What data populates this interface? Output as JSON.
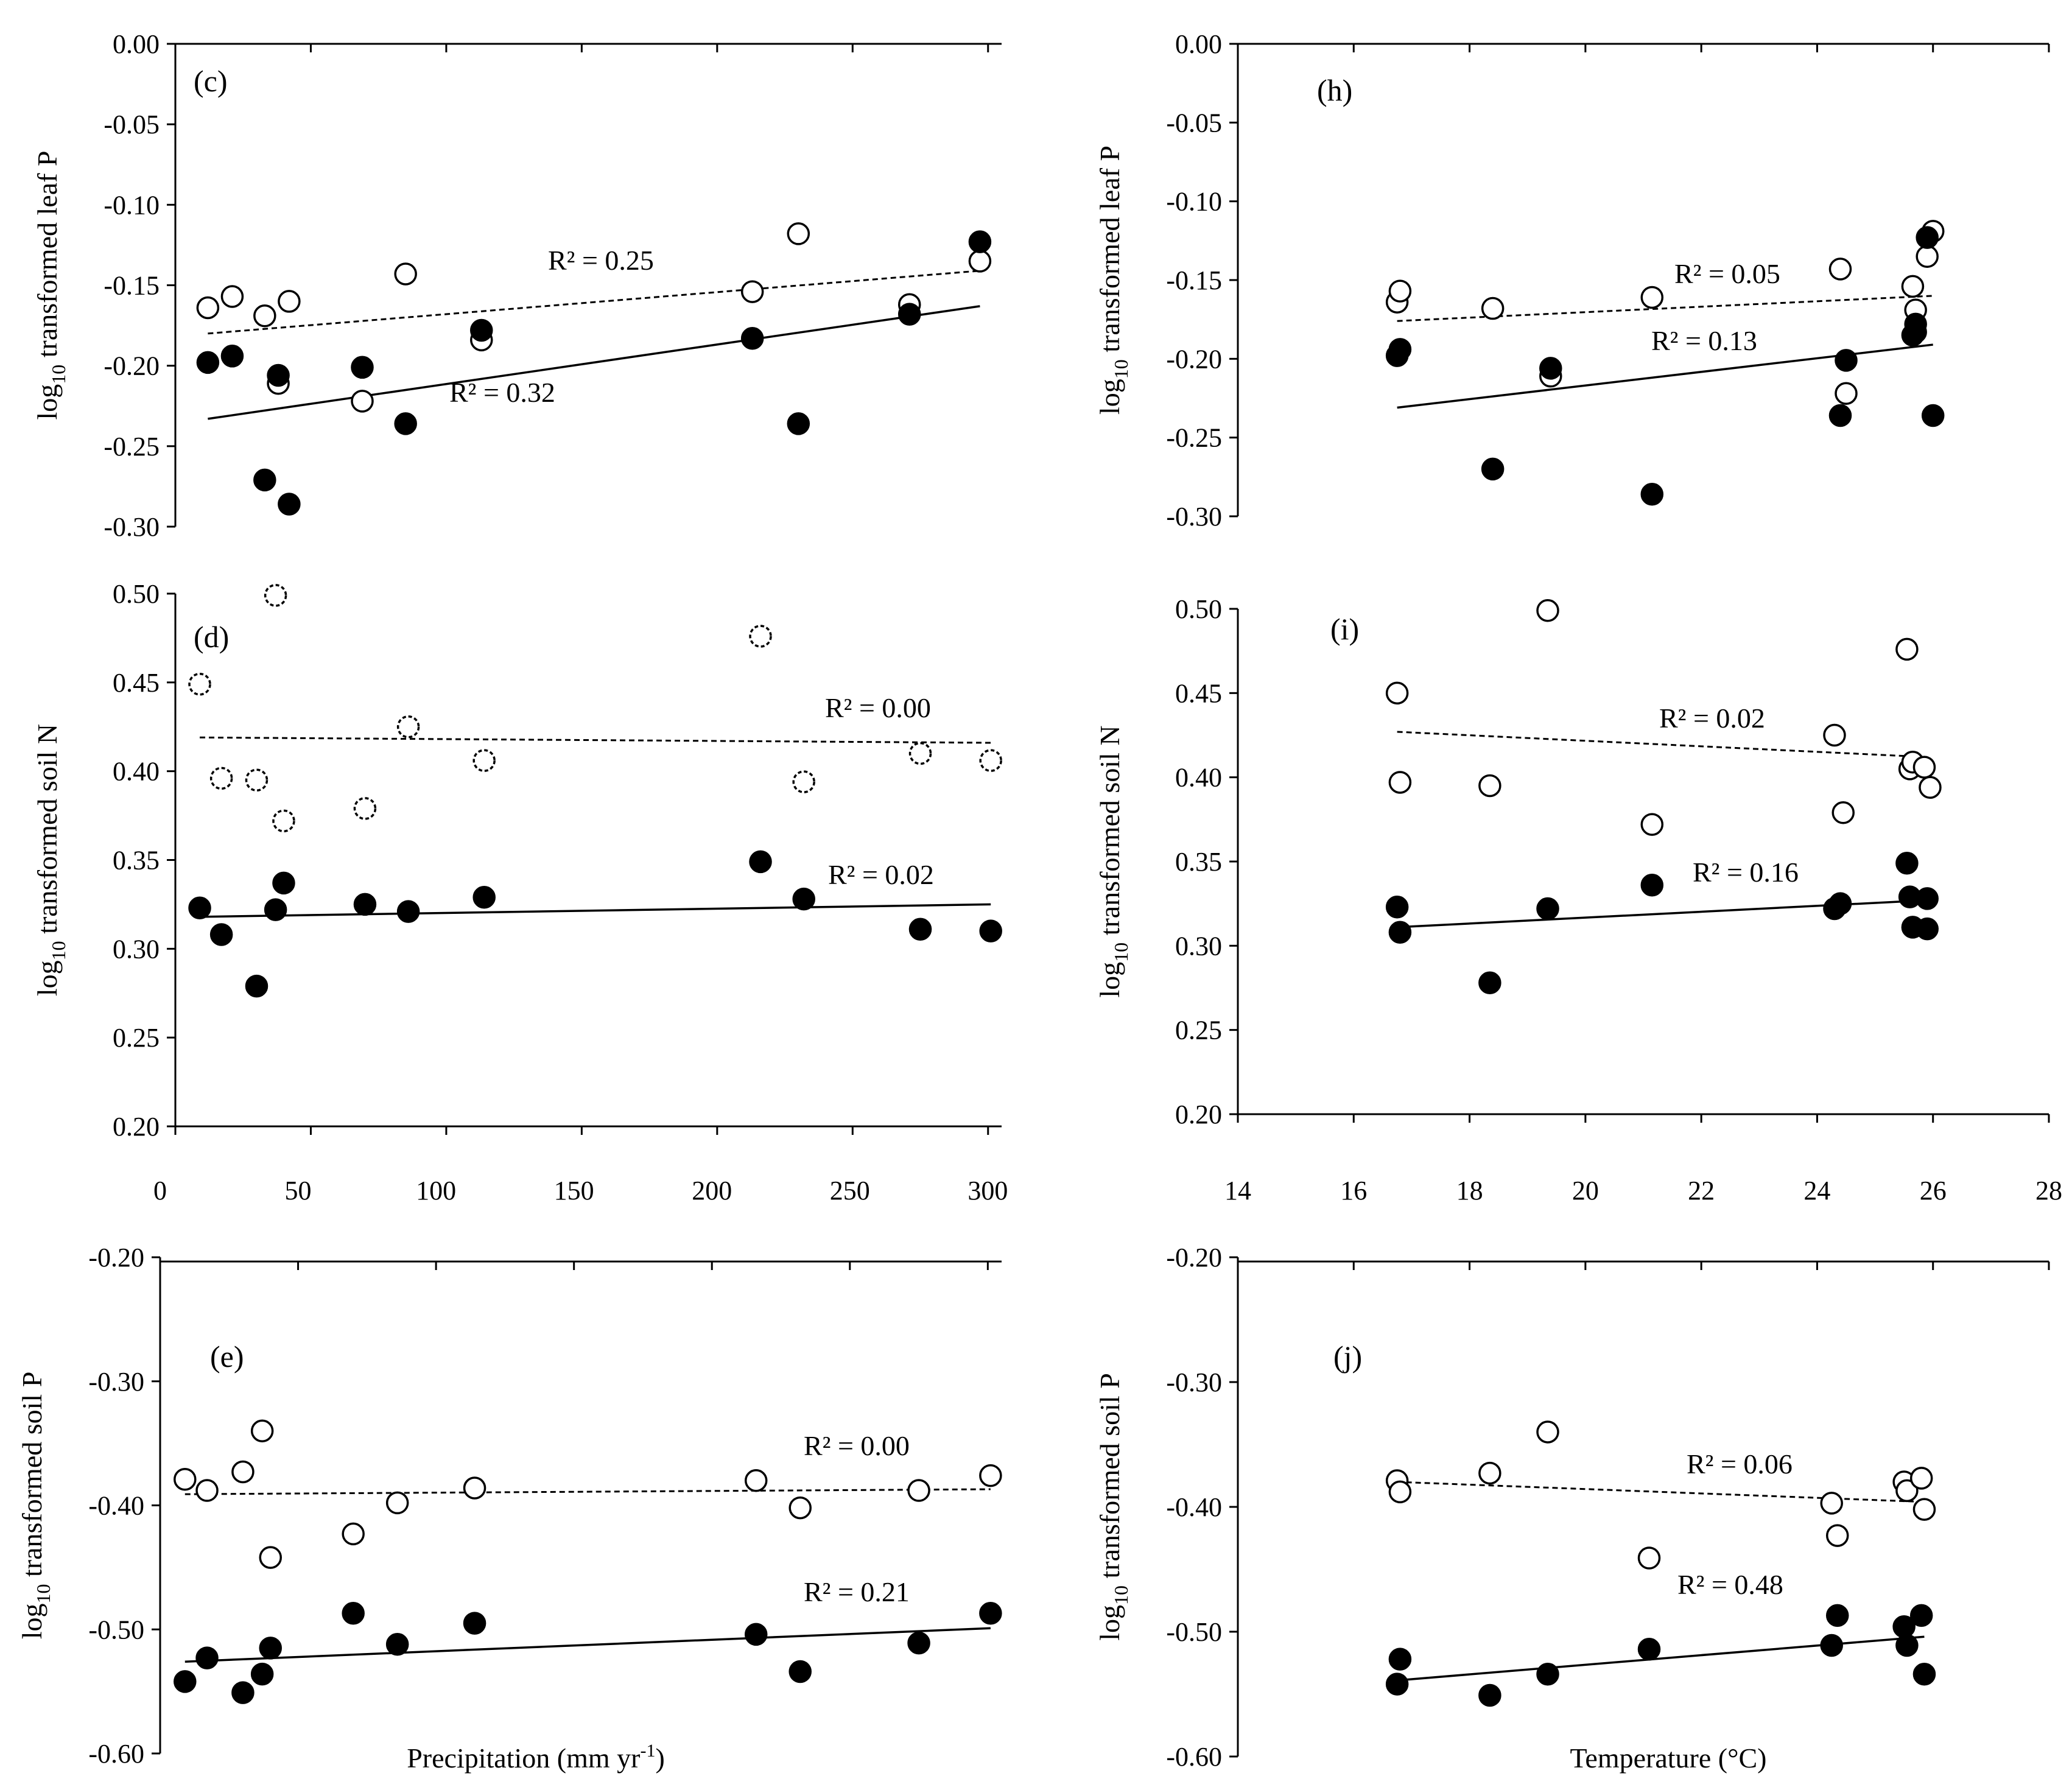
{
  "chart_data": [
    {
      "id": "c",
      "type": "scatter",
      "panel_label": "(c)",
      "ylabel": "log",
      "ylabel_sub": "10",
      "ylabel_rest": " transformed leaf P",
      "xlim": [
        0,
        305
      ],
      "ylim": [
        -0.3,
        0.0
      ],
      "yticks": [
        "0.00",
        "-0.05",
        "-0.10",
        "-0.15",
        "-0.20",
        "-0.25",
        "-0.30"
      ],
      "series": [
        {
          "name": "open",
          "filled": false,
          "dashed": false,
          "x": [
            12,
            21,
            33,
            38,
            42,
            69,
            85,
            113,
            213,
            230,
            271,
            297
          ],
          "y": [
            -0.164,
            -0.157,
            -0.169,
            -0.211,
            -0.16,
            -0.222,
            -0.143,
            -0.184,
            -0.154,
            -0.118,
            -0.162,
            -0.135
          ]
        },
        {
          "name": "filled",
          "filled": true,
          "dashed": false,
          "x": [
            12,
            21,
            33,
            38,
            42,
            69,
            85,
            113,
            213,
            230,
            271,
            297
          ],
          "y": [
            -0.198,
            -0.194,
            -0.271,
            -0.206,
            -0.286,
            -0.201,
            -0.236,
            -0.178,
            -0.183,
            -0.236,
            -0.168,
            -0.123
          ]
        }
      ],
      "trend_dashed": {
        "x": [
          12,
          297
        ],
        "y": [
          -0.18,
          -0.141
        ],
        "r2": "R² = 0.25"
      },
      "trend_solid": {
        "x": [
          12,
          297
        ],
        "y": [
          -0.233,
          -0.163
        ],
        "r2": "R² = 0.32"
      }
    },
    {
      "id": "d",
      "type": "scatter",
      "panel_label": "(d)",
      "ylabel": "log",
      "ylabel_sub": "10",
      "ylabel_rest": " transformed soil N",
      "xlim": [
        0,
        305
      ],
      "ylim": [
        0.2,
        0.5
      ],
      "yticks": [
        "0.50",
        "0.45",
        "0.40",
        "0.35",
        "0.30",
        "0.25",
        "0.20"
      ],
      "series": [
        {
          "name": "open",
          "filled": false,
          "dashed": true,
          "x": [
            9,
            17,
            30,
            37,
            40,
            70,
            86,
            114,
            216,
            232,
            275,
            301
          ],
          "y": [
            0.449,
            0.396,
            0.395,
            0.499,
            0.372,
            0.379,
            0.425,
            0.406,
            0.476,
            0.394,
            0.41,
            0.406
          ]
        },
        {
          "name": "filled",
          "filled": true,
          "dashed": false,
          "x": [
            9,
            17,
            30,
            37,
            40,
            70,
            86,
            114,
            216,
            232,
            275,
            301
          ],
          "y": [
            0.323,
            0.308,
            0.279,
            0.322,
            0.337,
            0.325,
            0.321,
            0.329,
            0.349,
            0.328,
            0.311,
            0.31
          ]
        }
      ],
      "trend_dashed": {
        "x": [
          9,
          301
        ],
        "y": [
          0.419,
          0.416
        ],
        "r2": "R² = 0.00"
      },
      "trend_solid": {
        "x": [
          9,
          301
        ],
        "y": [
          0.318,
          0.325
        ],
        "r2": "R² = 0.02"
      }
    },
    {
      "id": "e",
      "type": "scatter",
      "panel_label": "(e)",
      "ylabel": "log",
      "ylabel_sub": "10",
      "ylabel_rest": " transformed soil P",
      "xlabel": "Precipitation  (mm yr",
      "xlabel_sup": "-1",
      "xlabel_end": ")",
      "xlim": [
        0,
        305
      ],
      "ylim": [
        -0.6,
        -0.2
      ],
      "xticks": [
        "0",
        "50",
        "100",
        "150",
        "200",
        "250",
        "300"
      ],
      "yticks": [
        "-0.20",
        "-0.30",
        "-0.40",
        "-0.50",
        "-0.60"
      ],
      "series": [
        {
          "name": "open",
          "filled": false,
          "dashed": false,
          "x": [
            9,
            17,
            30,
            37,
            40,
            70,
            86,
            114,
            216,
            232,
            275,
            301
          ],
          "y": [
            -0.379,
            -0.388,
            -0.373,
            -0.34,
            -0.442,
            -0.423,
            -0.398,
            -0.386,
            -0.38,
            -0.402,
            -0.388,
            -0.376
          ]
        },
        {
          "name": "filled",
          "filled": true,
          "dashed": false,
          "x": [
            9,
            17,
            30,
            37,
            40,
            70,
            86,
            114,
            216,
            232,
            275,
            301
          ],
          "y": [
            -0.542,
            -0.523,
            -0.551,
            -0.536,
            -0.515,
            -0.487,
            -0.512,
            -0.495,
            -0.504,
            -0.534,
            -0.511,
            -0.487
          ]
        }
      ],
      "trend_dashed": {
        "x": [
          9,
          301
        ],
        "y": [
          -0.391,
          -0.387
        ],
        "r2": "R² = 0.00"
      },
      "trend_solid": {
        "x": [
          9,
          301
        ],
        "y": [
          -0.526,
          -0.499
        ],
        "r2": "R² = 0.21"
      }
    },
    {
      "id": "h",
      "type": "scatter",
      "panel_label": "(h)",
      "ylabel": "log",
      "ylabel_sub": "10",
      "ylabel_rest": " transformed leaf P",
      "xlim": [
        14,
        28
      ],
      "ylim": [
        -0.3,
        0.0
      ],
      "yticks": [
        "0.00",
        "-0.05",
        "-0.10",
        "-0.15",
        "-0.20",
        "-0.25",
        "-0.30"
      ],
      "series": [
        {
          "name": "open",
          "filled": false,
          "dashed": false,
          "x": [
            16.75,
            16.8,
            18.4,
            19.4,
            21.15,
            24.4,
            24.5,
            25.65,
            25.7,
            25.9,
            26.0
          ],
          "y": [
            -0.164,
            -0.157,
            -0.168,
            -0.211,
            -0.161,
            -0.143,
            -0.222,
            -0.154,
            -0.169,
            -0.135,
            -0.119
          ]
        },
        {
          "name": "filled",
          "filled": true,
          "dashed": false,
          "x": [
            16.75,
            16.8,
            18.4,
            19.4,
            21.15,
            24.4,
            24.5,
            25.65,
            25.7,
            25.7,
            25.9,
            26.0
          ],
          "y": [
            -0.198,
            -0.194,
            -0.27,
            -0.206,
            -0.286,
            -0.236,
            -0.201,
            -0.185,
            -0.178,
            -0.183,
            -0.123,
            -0.236
          ]
        }
      ],
      "trend_dashed": {
        "x": [
          16.75,
          26.0
        ],
        "y": [
          -0.176,
          -0.16
        ],
        "r2": "R² = 0.05"
      },
      "trend_solid": {
        "x": [
          16.75,
          26.0
        ],
        "y": [
          -0.231,
          -0.191
        ],
        "r2": "R² = 0.13"
      }
    },
    {
      "id": "i",
      "type": "scatter",
      "panel_label": "(i)",
      "ylabel": "log",
      "ylabel_sub": "10",
      "ylabel_rest": " transformed soil N",
      "xlim": [
        14,
        28
      ],
      "ylim": [
        0.2,
        0.5
      ],
      "yticks": [
        "0.50",
        "0.45",
        "0.40",
        "0.35",
        "0.30",
        "0.25",
        "0.20"
      ],
      "series": [
        {
          "name": "open",
          "filled": false,
          "dashed": false,
          "x": [
            16.75,
            16.8,
            18.35,
            19.35,
            21.15,
            24.3,
            24.45,
            25.55,
            25.6,
            25.65,
            25.85,
            25.95
          ],
          "y": [
            0.45,
            0.397,
            0.395,
            0.499,
            0.372,
            0.425,
            0.379,
            0.476,
            0.405,
            0.409,
            0.406,
            0.394
          ]
        },
        {
          "name": "filled",
          "filled": true,
          "dashed": false,
          "x": [
            16.75,
            16.8,
            18.35,
            19.35,
            21.15,
            24.3,
            24.4,
            25.55,
            25.6,
            25.65,
            25.9,
            25.9
          ],
          "y": [
            0.323,
            0.308,
            0.278,
            0.322,
            0.336,
            0.322,
            0.325,
            0.349,
            0.329,
            0.311,
            0.31,
            0.328
          ]
        }
      ],
      "trend_dashed": {
        "x": [
          16.75,
          25.9
        ],
        "y": [
          0.427,
          0.412
        ],
        "r2": "R² = 0.02"
      },
      "trend_solid": {
        "x": [
          16.75,
          25.9
        ],
        "y": [
          0.311,
          0.327
        ],
        "r2": "R² = 0.16"
      }
    },
    {
      "id": "j",
      "type": "scatter",
      "panel_label": "(j)",
      "ylabel": "log",
      "ylabel_sub": "10",
      "ylabel_rest": " transformed soil P",
      "xlabel": "Temperature (°C)",
      "xlim": [
        14,
        28
      ],
      "ylim": [
        -0.6,
        -0.2
      ],
      "xticks": [
        "14",
        "16",
        "18",
        "20",
        "22",
        "24",
        "26",
        "28"
      ],
      "yticks": [
        "-0.20",
        "-0.30",
        "-0.40",
        "-0.50",
        "-0.60"
      ],
      "series": [
        {
          "name": "open",
          "filled": false,
          "dashed": false,
          "x": [
            16.75,
            16.8,
            18.35,
            19.35,
            21.1,
            24.25,
            24.35,
            25.5,
            25.55,
            25.8,
            25.85
          ],
          "y": [
            -0.379,
            -0.388,
            -0.373,
            -0.34,
            -0.441,
            -0.397,
            -0.423,
            -0.38,
            -0.387,
            -0.377,
            -0.402
          ]
        },
        {
          "name": "filled",
          "filled": true,
          "dashed": false,
          "x": [
            16.75,
            16.8,
            18.35,
            19.35,
            21.1,
            24.25,
            24.35,
            25.5,
            25.55,
            25.8,
            25.85
          ],
          "y": [
            -0.542,
            -0.522,
            -0.551,
            -0.534,
            -0.514,
            -0.511,
            -0.487,
            -0.496,
            -0.511,
            -0.487,
            -0.534
          ]
        }
      ],
      "trend_dashed": {
        "x": [
          16.75,
          25.85
        ],
        "y": [
          -0.38,
          -0.396
        ],
        "r2": "R² = 0.06"
      },
      "trend_solid": {
        "x": [
          16.75,
          25.85
        ],
        "y": [
          -0.539,
          -0.504
        ],
        "r2": "R² = 0.48"
      }
    }
  ]
}
